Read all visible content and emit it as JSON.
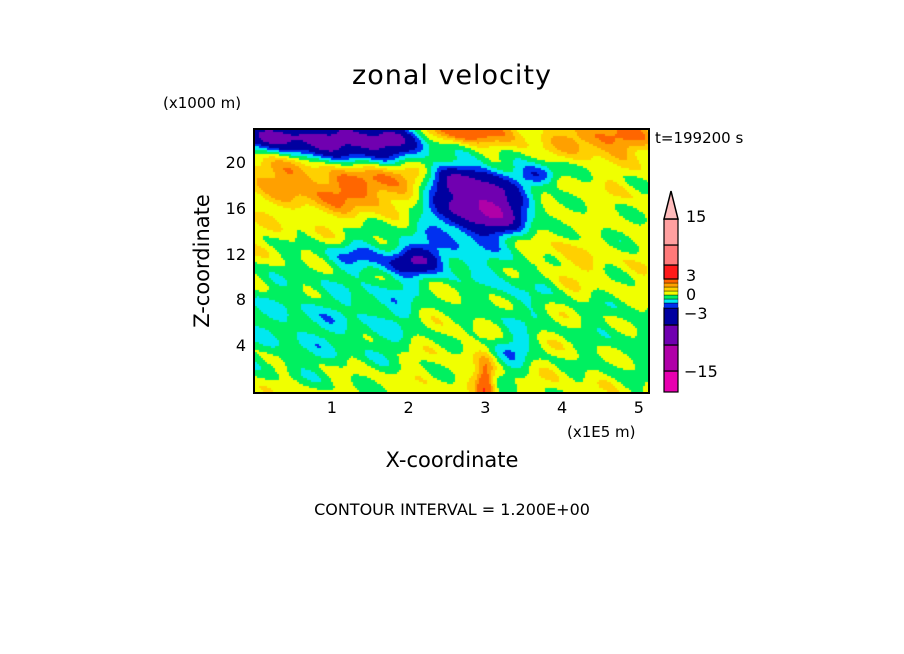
{
  "chart_data": {
    "type": "heatmap",
    "subtype": "filled-contour",
    "title": "zonal velocity",
    "xlabel": "X-coordinate",
    "ylabel": "Z-coordinate",
    "x_unit_label": "(x1E5 m)",
    "y_unit_label": "(x1000 m)",
    "time_label": "t=199200 s",
    "footer": "CONTOUR INTERVAL = 1.200E+00",
    "xlim": [
      0,
      5.12
    ],
    "ylim": [
      0,
      22.9
    ],
    "xticks": [
      "1",
      "2",
      "3",
      "4",
      "5"
    ],
    "xtick_values": [
      1,
      2,
      3,
      4,
      5
    ],
    "yticks": [
      "4",
      "8",
      "12",
      "16",
      "20"
    ],
    "ytick_values": [
      4,
      8,
      12,
      16,
      20
    ],
    "contour_interval": 1.2,
    "colorbar": {
      "labels": [
        "15",
        "3",
        "0",
        "-3",
        "-15"
      ],
      "label_values": [
        15,
        3,
        0,
        -3,
        -15
      ],
      "bins": [
        {
          "min": -99,
          "max": -15,
          "color": "#e800b0"
        },
        {
          "min": -15,
          "max": -9,
          "color": "#b000a8"
        },
        {
          "min": -9,
          "max": -6,
          "color": "#7000b0"
        },
        {
          "min": -6,
          "max": -3.6,
          "color": "#0000a0"
        },
        {
          "min": -3.6,
          "max": -2.4,
          "color": "#0030f0"
        },
        {
          "min": -2.4,
          "max": -1.2,
          "color": "#00e8f0"
        },
        {
          "min": -1.2,
          "max": 0,
          "color": "#00f060"
        },
        {
          "min": 0,
          "max": 1.2,
          "color": "#f0ff00"
        },
        {
          "min": 1.2,
          "max": 2.4,
          "color": "#ffd000"
        },
        {
          "min": 2.4,
          "max": 3.6,
          "color": "#ffa000"
        },
        {
          "min": 3.6,
          "max": 6,
          "color": "#ff6600"
        },
        {
          "min": 6,
          "max": 10,
          "color": "#ff1a1a"
        },
        {
          "min": 10,
          "max": 15,
          "color": "#ff7a7a"
        },
        {
          "min": 15,
          "max": 20,
          "color": "#ffa0a0"
        },
        {
          "min": 20,
          "max": 99,
          "color": "#ffbcbc"
        }
      ]
    }
  }
}
